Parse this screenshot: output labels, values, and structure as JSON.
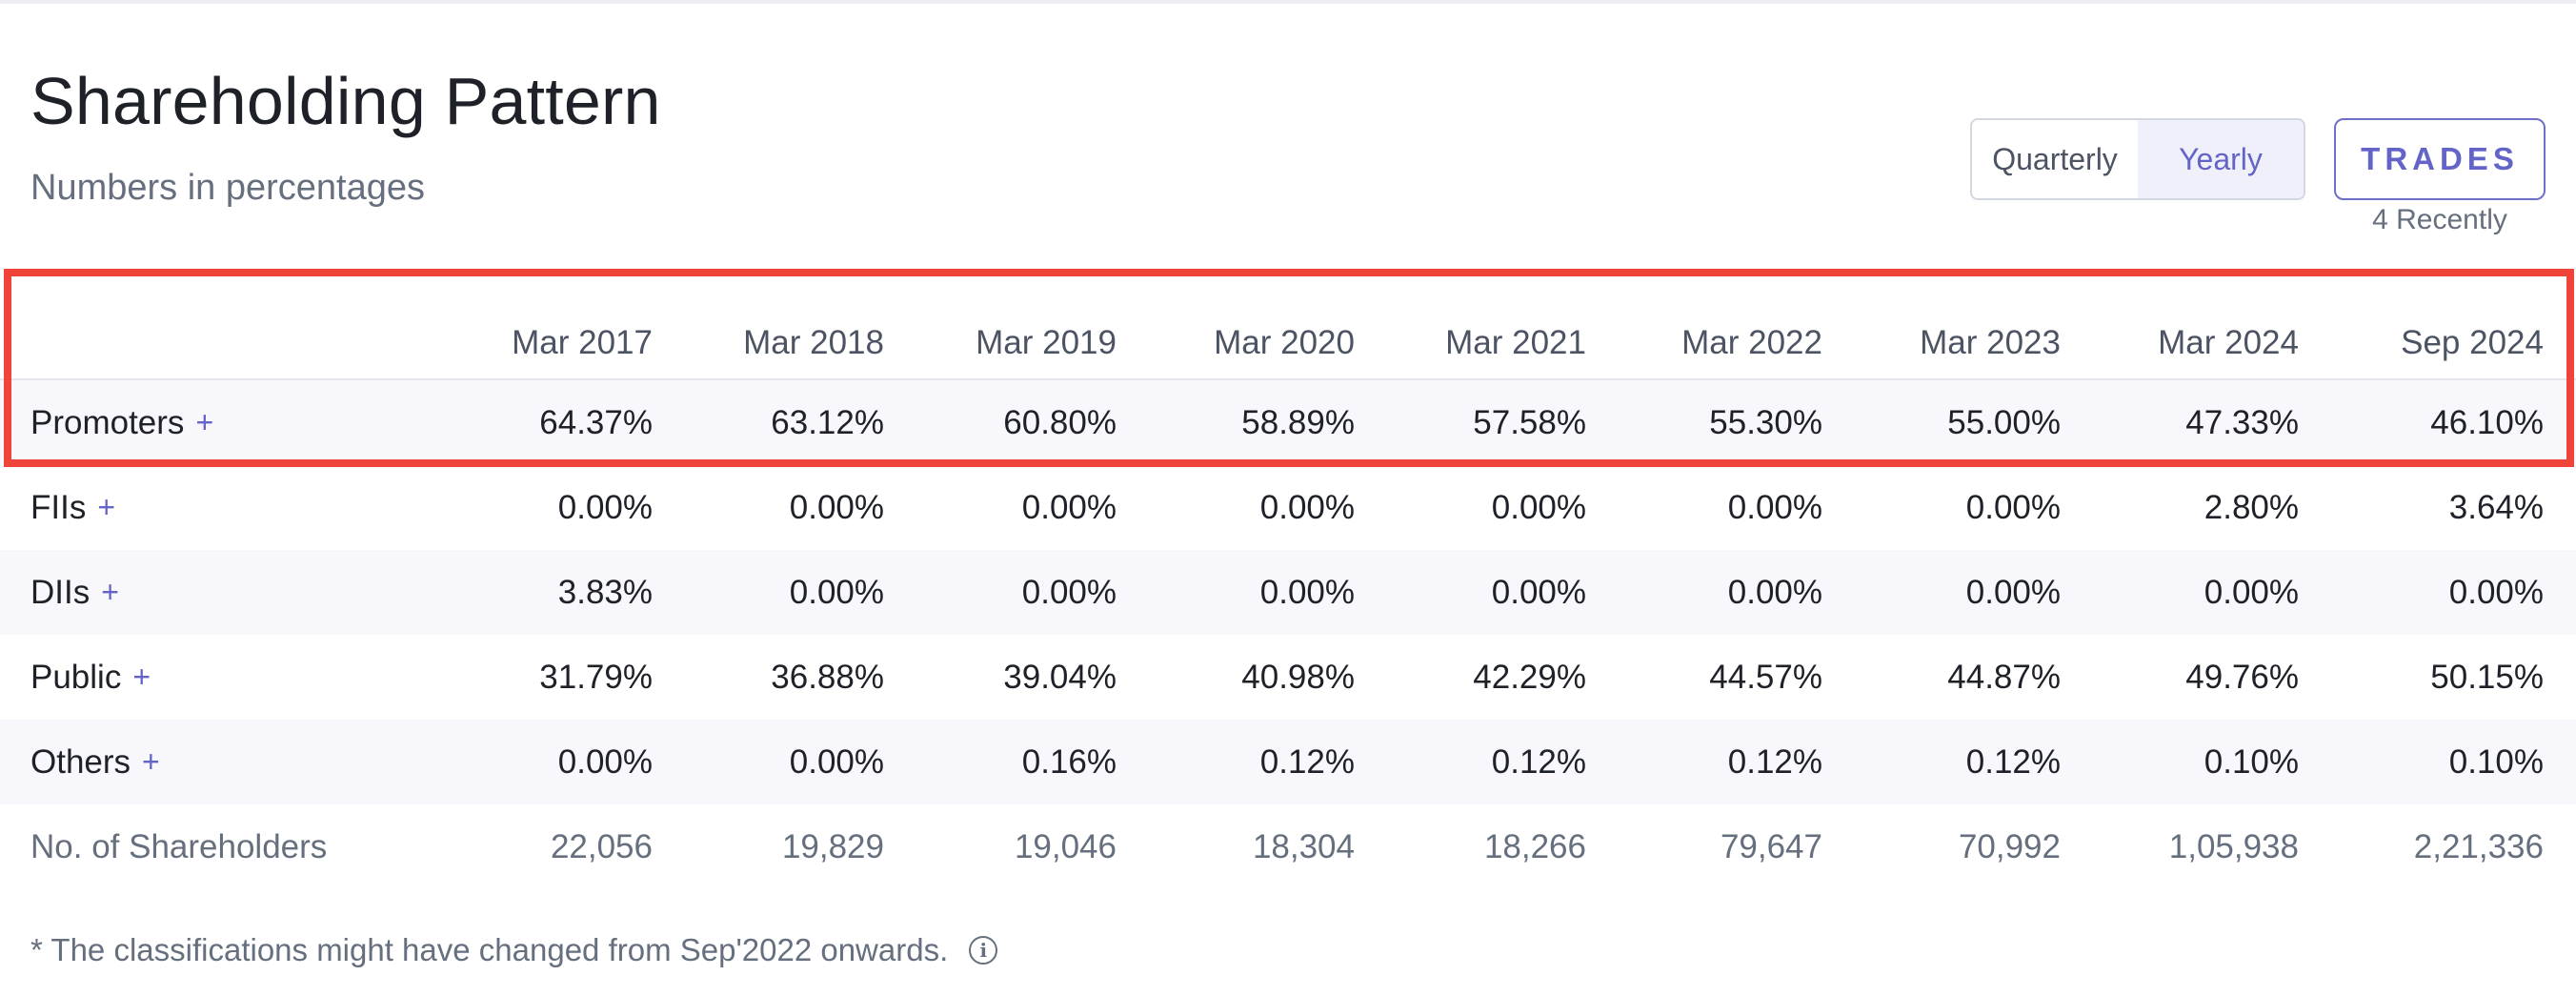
{
  "header": {
    "title": "Shareholding Pattern",
    "subtitle": "Numbers in percentages"
  },
  "toggle": {
    "options": [
      "Quarterly",
      "Yearly"
    ],
    "selected": "Yearly"
  },
  "trades": {
    "label": "TRADES",
    "note": "4 Recently"
  },
  "table": {
    "columns": [
      "Mar 2017",
      "Mar 2018",
      "Mar 2019",
      "Mar 2020",
      "Mar 2021",
      "Mar 2022",
      "Mar 2023",
      "Mar 2024",
      "Sep 2024"
    ],
    "rows": [
      {
        "label": "Promoters",
        "expand": "+",
        "values": [
          "64.37%",
          "63.12%",
          "60.80%",
          "58.89%",
          "57.58%",
          "55.30%",
          "55.00%",
          "47.33%",
          "46.10%"
        ]
      },
      {
        "label": "FIIs",
        "expand": "+",
        "values": [
          "0.00%",
          "0.00%",
          "0.00%",
          "0.00%",
          "0.00%",
          "0.00%",
          "0.00%",
          "2.80%",
          "3.64%"
        ]
      },
      {
        "label": "DIIs",
        "expand": "+",
        "values": [
          "3.83%",
          "0.00%",
          "0.00%",
          "0.00%",
          "0.00%",
          "0.00%",
          "0.00%",
          "0.00%",
          "0.00%"
        ]
      },
      {
        "label": "Public",
        "expand": "+",
        "values": [
          "31.79%",
          "36.88%",
          "39.04%",
          "40.98%",
          "42.29%",
          "44.57%",
          "44.87%",
          "49.76%",
          "50.15%"
        ]
      },
      {
        "label": "Others",
        "expand": "+",
        "values": [
          "0.00%",
          "0.00%",
          "0.16%",
          "0.12%",
          "0.12%",
          "0.12%",
          "0.12%",
          "0.10%",
          "0.10%"
        ]
      }
    ],
    "shareholders": {
      "label": "No. of Shareholders",
      "values": [
        "22,056",
        "19,829",
        "19,046",
        "18,304",
        "18,266",
        "79,647",
        "70,992",
        "1,05,938",
        "2,21,336"
      ]
    }
  },
  "footnote": "* The classifications might have changed from Sep'2022 onwards.",
  "colors": {
    "accent": "#6464c8",
    "highlight_border": "#f0443a",
    "stripe": "#f7f7fc"
  },
  "icons": {
    "footnote": "info-icon"
  }
}
